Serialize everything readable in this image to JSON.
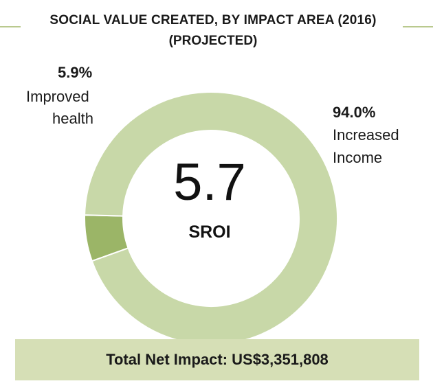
{
  "header": {
    "title": "SOCIAL VALUE CREATED, BY IMPACT AREA (2016)",
    "subtitle": "(PROJECTED)"
  },
  "chart_data": {
    "type": "pie",
    "title": "SOCIAL VALUE CREATED, BY IMPACT AREA (2016)",
    "subtitle": "(PROJECTED)",
    "donut": true,
    "slices": [
      {
        "label_line1": "Increased",
        "label_line2": "Income",
        "value": 94.0,
        "value_text": "94.0%",
        "color": "#c8d8a8"
      },
      {
        "label_line1": "Improved",
        "label_line2": "health",
        "value": 5.9,
        "value_text": "5.9%",
        "color": "#9bb567"
      }
    ],
    "center": {
      "value": "5.7",
      "label": "SROI"
    }
  },
  "footer": {
    "net_impact": "Total Net Impact: US$3,351,808"
  },
  "colors": {
    "accent_line": "#b9c98e",
    "box_background": "#d6dfb6"
  }
}
